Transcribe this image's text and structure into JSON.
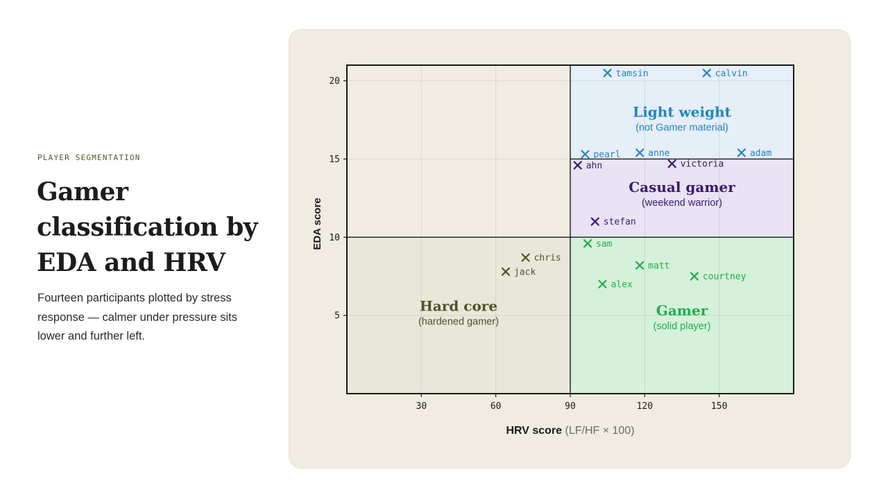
{
  "eyebrow": "PLAYER SEGMENTATION",
  "title": "Gamer classification by EDA and HRV",
  "description": "Fourteen participants plotted by stress response — calmer under pressure sits lower and further left.",
  "chart_data": {
    "type": "scatter",
    "xlabel": "HRV score",
    "xlabel_unit": "(LF/HF × 100)",
    "ylabel": "EDA score",
    "xlim": [
      0,
      180
    ],
    "ylim": [
      0,
      21
    ],
    "xticks": [
      30,
      60,
      90,
      120,
      150
    ],
    "yticks": [
      5,
      10,
      15,
      20
    ],
    "grid": true,
    "marker": "×",
    "regions": [
      {
        "name": "Light weight",
        "sublabel": "(not Gamer material)",
        "x": [
          90,
          180
        ],
        "y": [
          15,
          21
        ],
        "color": "#1f86bf",
        "fill": "#e6eef8"
      },
      {
        "name": "Casual gamer",
        "sublabel": "(weekend warrior)",
        "x": [
          90,
          180
        ],
        "y": [
          10,
          15
        ],
        "color": "#3a1a6e",
        "fill": "#e8e4f4"
      },
      {
        "name": "Gamer",
        "sublabel": "(solid player)",
        "x": [
          90,
          180
        ],
        "y": [
          0,
          10
        ],
        "color": "#1fae4a",
        "fill": "#d5f1da"
      },
      {
        "name": "Hard core",
        "sublabel": "(hardened gamer)",
        "x": [
          0,
          90
        ],
        "y": [
          0,
          10
        ],
        "color": "#4d5428",
        "fill": "#e8e7da"
      }
    ],
    "series": [
      {
        "group": "Light weight",
        "color": "#1f86bf",
        "points": [
          {
            "label": "tamsin",
            "x": 105,
            "y": 20.5
          },
          {
            "label": "calvin",
            "x": 145,
            "y": 20.5
          },
          {
            "label": "pearl",
            "x": 96,
            "y": 15.3
          },
          {
            "label": "anne",
            "x": 118,
            "y": 15.4
          },
          {
            "label": "adam",
            "x": 159,
            "y": 15.4
          }
        ]
      },
      {
        "group": "Casual gamer",
        "color": "#3a1a6e",
        "points": [
          {
            "label": "ahn",
            "x": 93,
            "y": 14.6
          },
          {
            "label": "victoria",
            "x": 131,
            "y": 14.7
          },
          {
            "label": "stefan",
            "x": 100,
            "y": 11.0
          }
        ]
      },
      {
        "group": "Gamer",
        "color": "#1fae4a",
        "points": [
          {
            "label": "sam",
            "x": 97,
            "y": 9.6
          },
          {
            "label": "matt",
            "x": 118,
            "y": 8.2
          },
          {
            "label": "courtney",
            "x": 140,
            "y": 7.5
          },
          {
            "label": "alex",
            "x": 103,
            "y": 7.0
          }
        ]
      },
      {
        "group": "Hard core",
        "color": "#4d5428",
        "points": [
          {
            "label": "chris",
            "x": 72,
            "y": 8.7
          },
          {
            "label": "jack",
            "x": 64,
            "y": 7.8
          }
        ]
      }
    ]
  }
}
